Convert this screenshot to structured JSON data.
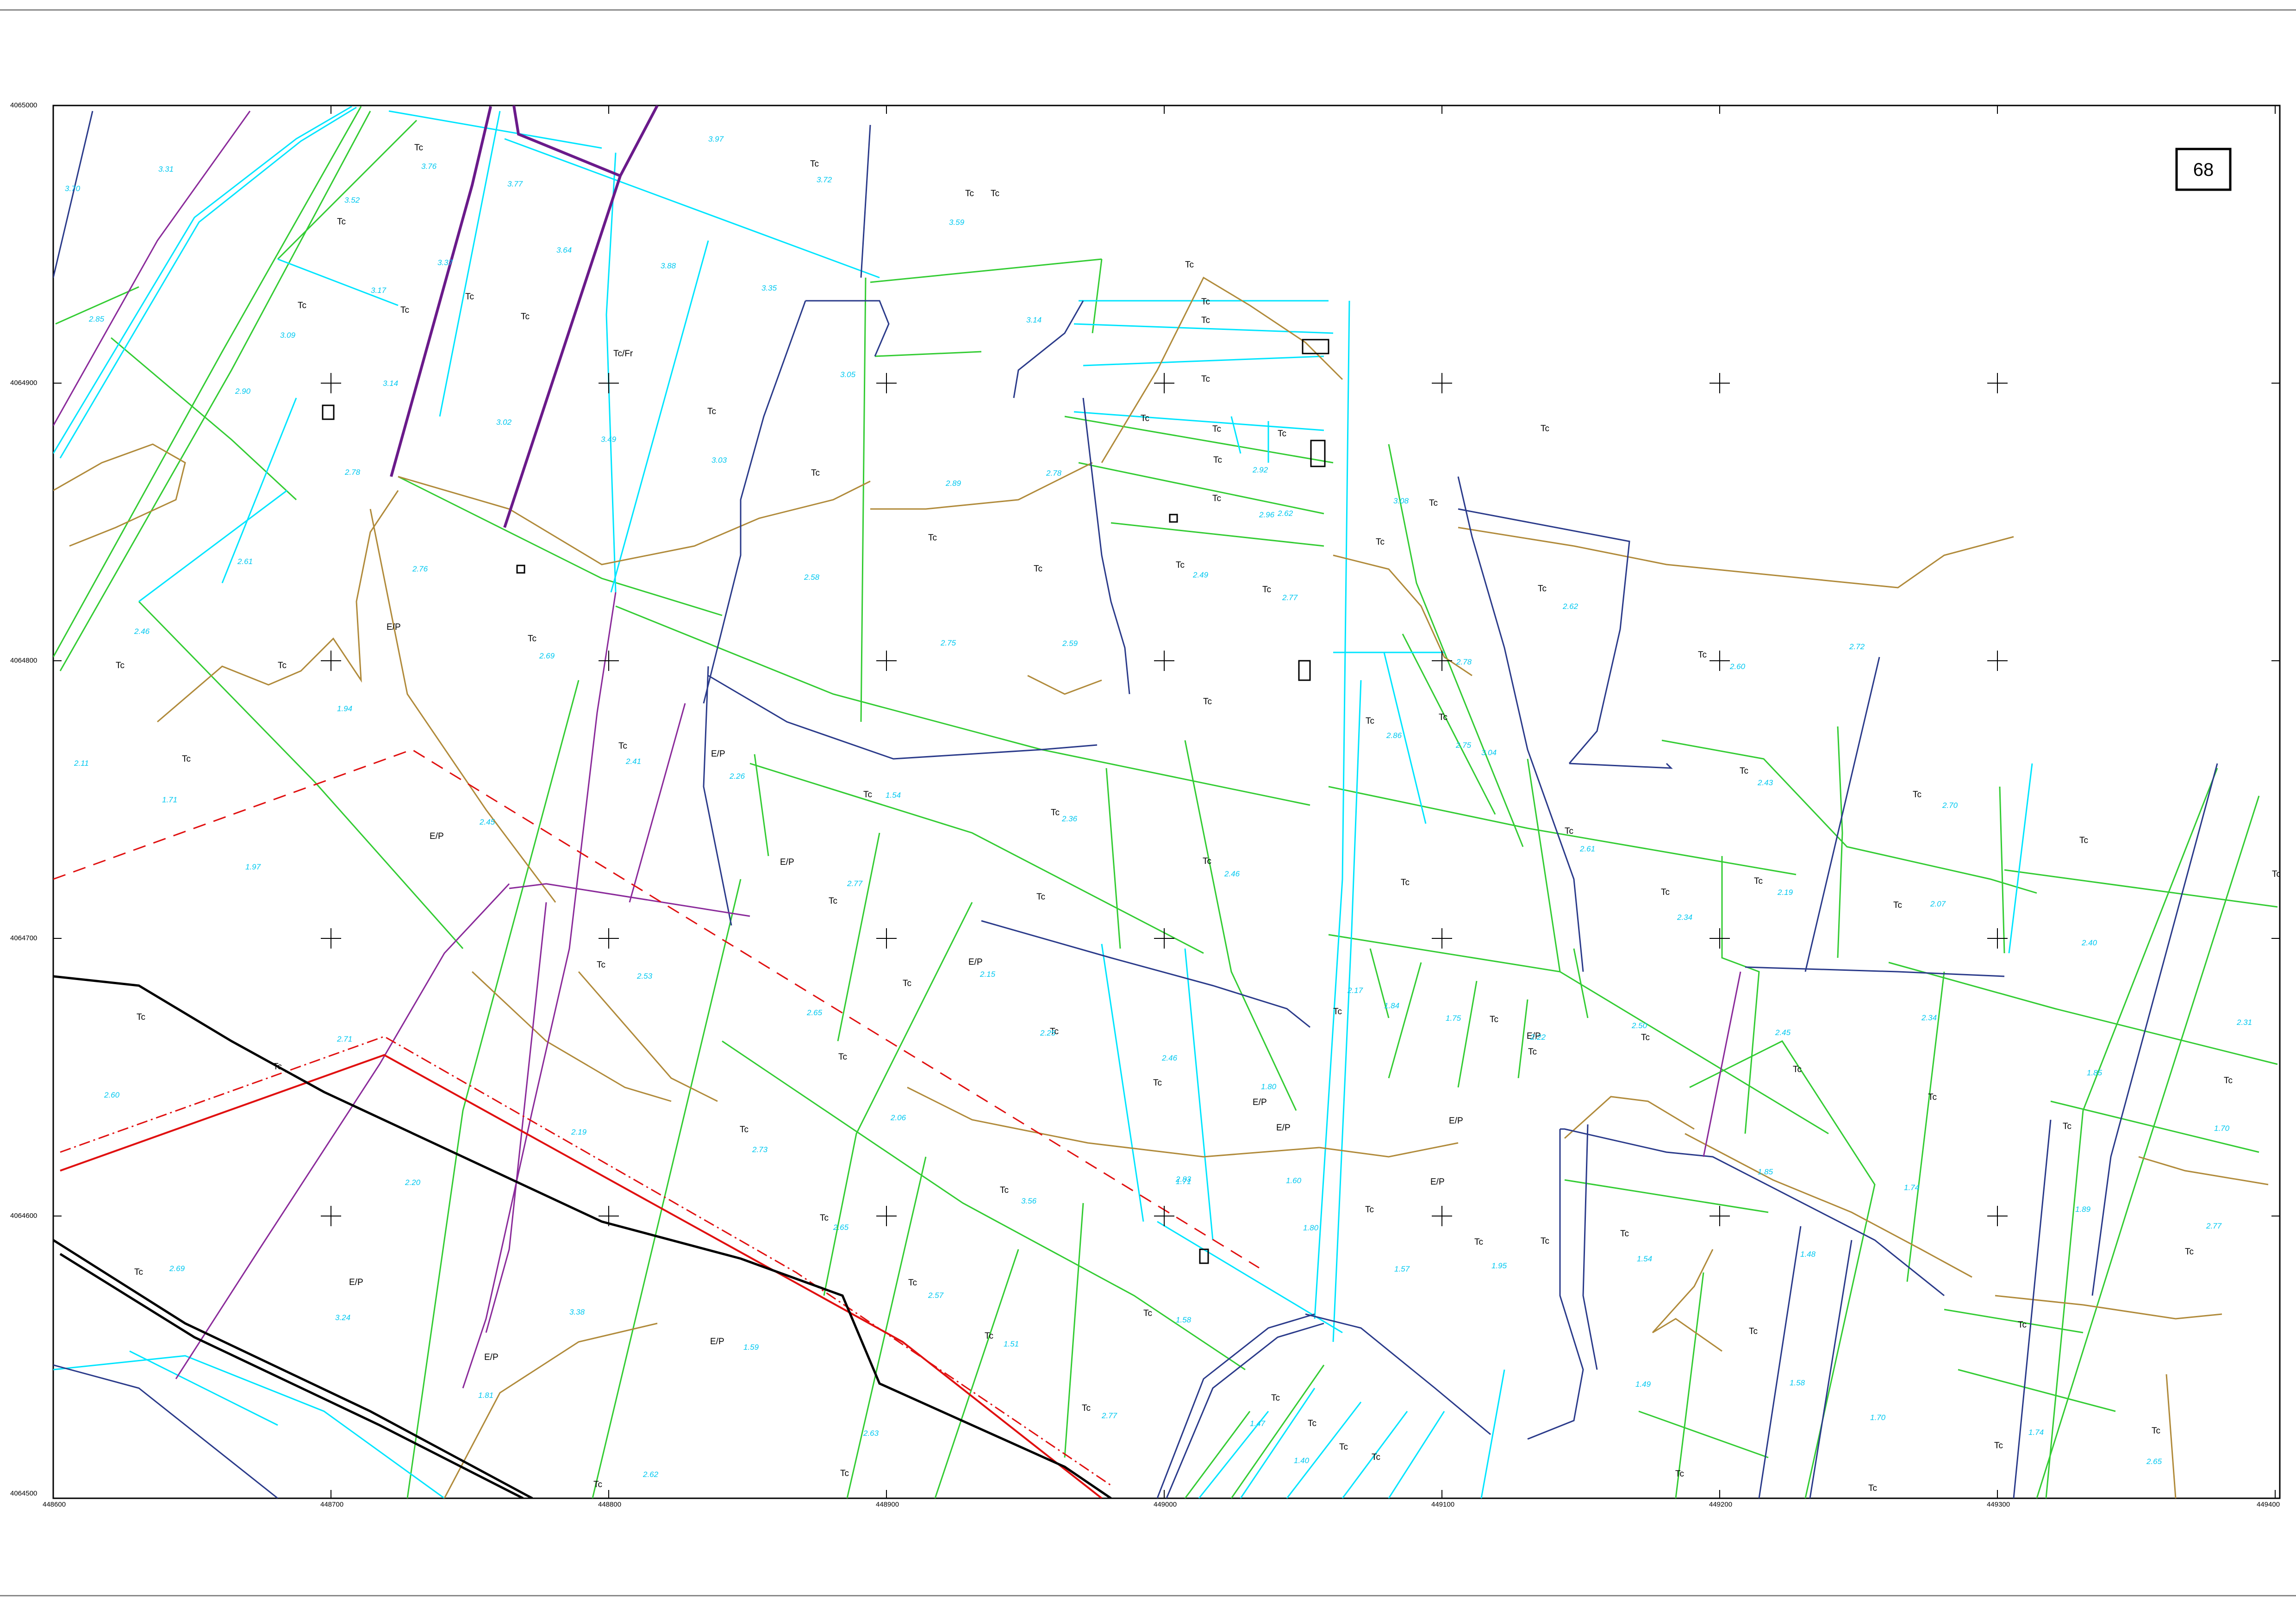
{
  "sheet": {
    "number": "68"
  },
  "axes": {
    "northing": [
      "4065000",
      "4064900",
      "4064800",
      "4064700",
      "4064600",
      "4064500"
    ],
    "easting": [
      "448600",
      "448700",
      "448800",
      "448900",
      "449000",
      "449100",
      "449200",
      "449300",
      "449400"
    ]
  },
  "parcel_labels": [
    "Tc",
    "Tc",
    "Tc",
    "Tc",
    "Tc",
    "Tc",
    "Tc",
    "Tc",
    "Tc",
    "Tc/Fr",
    "Tc",
    "Tc",
    "Tc",
    "Tc",
    "Tc",
    "Tc",
    "Tc",
    "Tc",
    "Tc",
    "Tc",
    "Tc",
    "Tc",
    "Tc",
    "Tc",
    "Tc",
    "Tc",
    "Tc",
    "Tc",
    "E/P",
    "Tc",
    "Tc",
    "Tc",
    "Tc",
    "Tc",
    "Tc",
    "Tc",
    "Tc",
    "Tc",
    "Tc",
    "Tc",
    "E/P",
    "Tc",
    "E/P",
    "Tc",
    "Tc",
    "Tc",
    "Tc",
    "Tc",
    "Tc",
    "Tc",
    "Tc",
    "Tc",
    "Tc",
    "E/P",
    "Tc",
    "Tc",
    "E/P",
    "Tc",
    "Tc",
    "Tc",
    "Tc",
    "E/P",
    "Tc",
    "Tc",
    "Tc",
    "Tc",
    "Tc",
    "Tc",
    "Tc",
    "Tc",
    "Tc",
    "Tc",
    "E/P",
    "Tc",
    "E/P",
    "E/P",
    "Tc",
    "Tc",
    "Tc",
    "Tc",
    "Tc",
    "Tc",
    "Tc",
    "Tc",
    "Tc",
    "Tc",
    "Tc",
    "E/P",
    "Tc",
    "Tc",
    "E/P",
    "E/P",
    "Tc",
    "Tc",
    "Tc",
    "Tc",
    "Tc",
    "Tc",
    "Tc",
    "Tc",
    "Tc",
    "Tc",
    "Tc",
    "Tc",
    "E/P",
    "Tc",
    "Tc",
    "Tc",
    "Tc",
    "Tc",
    "Tc",
    "Tc",
    "Tc",
    "Tc",
    "Tc",
    "Tc",
    "Tc"
  ],
  "spot_values": [
    "3.31",
    "3.70",
    "3.52",
    "3.76",
    "3.77",
    "3.97",
    "3.72",
    "3.59",
    "3.64",
    "3.37",
    "3.17",
    "3.88",
    "3.35",
    "3.14",
    "3.09",
    "2.85",
    "3.14",
    "2.90",
    "3.05",
    "3.02",
    "3.49",
    "3.03",
    "2.78",
    "2.89",
    "2.78",
    "2.92",
    "2.62",
    "2.96",
    "3.08",
    "2.61",
    "2.76",
    "2.69",
    "2.58",
    "2.75",
    "2.59",
    "2.49",
    "2.77",
    "2.62",
    "2.46",
    "1.94",
    "2.41",
    "2.26",
    "2.60",
    "2.72",
    "2.78",
    "3.04",
    "2.75",
    "2.86",
    "2.11",
    "1.71",
    "2.45",
    "1.97",
    "1.54",
    "2.36",
    "2.43",
    "2.70",
    "2.61",
    "2.77",
    "2.46",
    "2.15",
    "2.34",
    "2.19",
    "2.07",
    "2.40",
    "2.53",
    "2.65",
    "2.71",
    "2.60",
    "2.25",
    "2.17",
    "1.84",
    "1.75",
    "2.22",
    "2.50",
    "2.45",
    "2.34",
    "2.31",
    "2.19",
    "2.73",
    "2.83",
    "2.46",
    "1.80",
    "1.60",
    "1.85",
    "2.20",
    "2.06",
    "2.65",
    "3.56",
    "1.71",
    "1.80",
    "1.57",
    "1.95",
    "1.85",
    "1.74",
    "1.70",
    "1.89",
    "2.77",
    "2.69",
    "3.24",
    "3.38",
    "2.57",
    "1.51",
    "1.58",
    "1.54",
    "1.48",
    "1.59",
    "1.81",
    "2.63",
    "2.77",
    "1.47",
    "1.40",
    "1.49",
    "1.58",
    "1.70",
    "1.74",
    "2.65",
    "2.62",
    "2.59",
    "2.78",
    "2.72",
    "1.30"
  ],
  "colors": {
    "boundary_green": "#33cc33",
    "boundary_cyan": "#00e5ff",
    "contour_brown": "#b08a3a",
    "road_navy": "#2a3a8a",
    "line_red": "#e01010",
    "line_purple": "#8a2a9a",
    "line_black": "#000000",
    "value_cyan": "#00c8f0"
  }
}
